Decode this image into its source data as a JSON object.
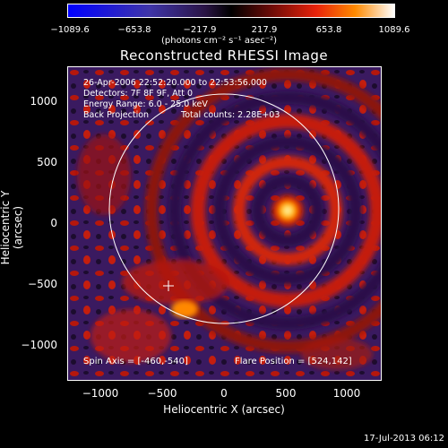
{
  "colorbar": {
    "ticks": [
      "−1089.6",
      "−653.8",
      "−217.9",
      "217.9",
      "653.8",
      "1089.6"
    ],
    "unit": "(photons cm⁻² s⁻¹ asec⁻²)"
  },
  "title": "Reconstructed RHESSI Image",
  "info": {
    "time": "26-Apr-2006 22:52:20.000 to 22:53:56.000",
    "detectors": "Detectors: 7F 8F 9F, Att 0",
    "energy": "Energy Range: 6.0 - 25.0 keV",
    "method": "Back Projection",
    "counts": "Total counts: 2.28E+03"
  },
  "spin_axis": "Spin Axis = [-460,-540]",
  "flare_position": "Flare Position = [524,142]",
  "axes": {
    "xlabel": "Heliocentric X (arcsec)",
    "ylabel": "Heliocentric Y (arcsec)",
    "xticks": [
      "−1000",
      "−500",
      "0",
      "500",
      "1000"
    ],
    "yticks": [
      "1000",
      "500",
      "0",
      "−500",
      "−1000"
    ]
  },
  "footer": "17-Jul-2013 06:12",
  "colors": {
    "background": "#000000",
    "negative": "#3a1a60",
    "positive": "#e8220a",
    "peak": "#ffffff",
    "limb": "#ffffff"
  }
}
